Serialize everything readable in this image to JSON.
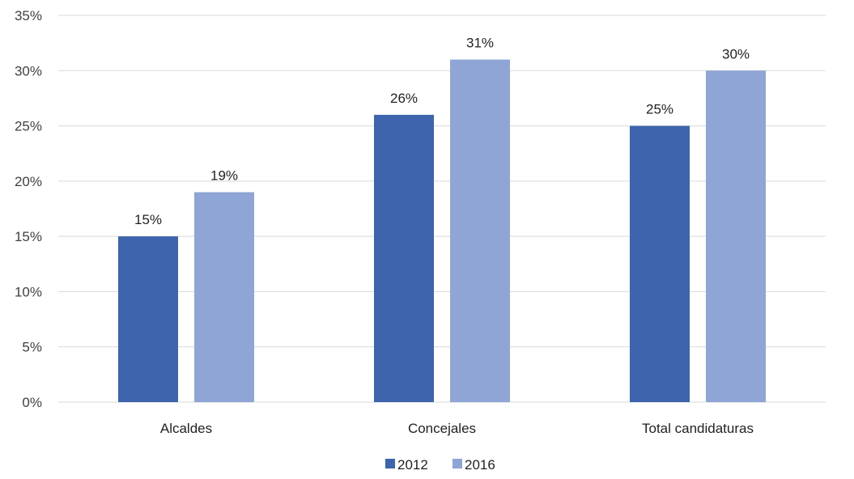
{
  "chart_data": {
    "type": "bar",
    "title": "",
    "xlabel": "",
    "ylabel": "",
    "categories": [
      "Alcaldes",
      "Concejales",
      "Total candidaturas"
    ],
    "series": [
      {
        "name": "2012",
        "values": [
          15,
          26,
          25
        ],
        "labels": [
          "15%",
          "26%",
          "25%"
        ],
        "color": "#3d64ad"
      },
      {
        "name": "2016",
        "values": [
          19,
          31,
          30
        ],
        "labels": [
          "19%",
          "31%",
          "30%"
        ],
        "color": "#8fa5d6"
      }
    ],
    "ylim": [
      0,
      35
    ],
    "yticks": [
      0,
      5,
      10,
      15,
      20,
      25,
      30,
      35
    ],
    "ytick_labels": [
      "0%",
      "5%",
      "10%",
      "15%",
      "20%",
      "25%",
      "30%",
      "35%"
    ],
    "grid": true,
    "legend_position": "bottom"
  }
}
